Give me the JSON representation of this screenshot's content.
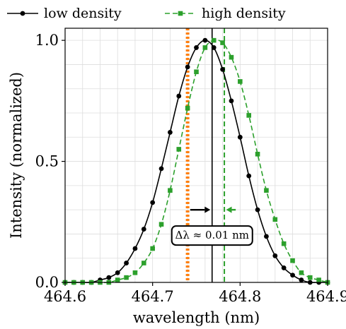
{
  "chart_data": {
    "type": "line",
    "title": "",
    "xlabel": "wavelength (nm)",
    "ylabel": "Intensity (normalized)",
    "xlim": [
      464.6,
      464.9
    ],
    "ylim": [
      0.0,
      1.05
    ],
    "xticks": [
      464.6,
      464.7,
      464.8,
      464.9
    ],
    "xtick_labels": [
      "464.6",
      "464.7",
      "464.8",
      "464.9"
    ],
    "yticks": [
      0.0,
      0.5,
      1.0
    ],
    "ytick_labels": [
      "0.0",
      "0.5",
      "1.0"
    ],
    "grid": true,
    "legend_position": "top",
    "series": [
      {
        "name": "low density",
        "color": "#000000",
        "marker": "circle",
        "linestyle": "solid",
        "x": [
          464.6,
          464.61,
          464.62,
          464.63,
          464.64,
          464.65,
          464.66,
          464.67,
          464.68,
          464.69,
          464.7,
          464.71,
          464.72,
          464.73,
          464.74,
          464.75,
          464.76,
          464.77,
          464.78,
          464.79,
          464.8,
          464.81,
          464.82,
          464.83,
          464.84,
          464.85,
          464.86,
          464.87,
          464.88,
          464.89,
          464.9
        ],
        "values": [
          0.0,
          0.0,
          0.0,
          0.0,
          0.01,
          0.02,
          0.04,
          0.08,
          0.14,
          0.22,
          0.33,
          0.47,
          0.62,
          0.77,
          0.89,
          0.97,
          1.0,
          0.97,
          0.88,
          0.75,
          0.6,
          0.44,
          0.3,
          0.19,
          0.11,
          0.06,
          0.03,
          0.01,
          0.0,
          0.0,
          0.0
        ]
      },
      {
        "name": "high density",
        "color": "#2ca02c",
        "marker": "square",
        "linestyle": "dashed",
        "x": [
          464.6,
          464.61,
          464.62,
          464.63,
          464.64,
          464.65,
          464.66,
          464.67,
          464.68,
          464.69,
          464.7,
          464.71,
          464.72,
          464.73,
          464.74,
          464.75,
          464.76,
          464.77,
          464.78,
          464.79,
          464.8,
          464.81,
          464.82,
          464.83,
          464.84,
          464.85,
          464.86,
          464.87,
          464.88,
          464.89,
          464.9
        ],
        "values": [
          0.0,
          0.0,
          0.0,
          0.0,
          0.0,
          0.0,
          0.01,
          0.02,
          0.04,
          0.08,
          0.14,
          0.24,
          0.38,
          0.55,
          0.72,
          0.87,
          0.97,
          1.0,
          0.99,
          0.93,
          0.83,
          0.69,
          0.53,
          0.38,
          0.26,
          0.16,
          0.09,
          0.04,
          0.02,
          0.01,
          0.0
        ]
      }
    ],
    "vlines": [
      {
        "x": 464.74,
        "color": "#ff7f0e",
        "style": "dotted"
      },
      {
        "x": 464.768,
        "color": "#000000",
        "style": "solid"
      },
      {
        "x": 464.782,
        "color": "#2ca02c",
        "style": "dashed"
      }
    ],
    "arrows": [
      {
        "from_x": 464.743,
        "to_x": 464.766,
        "y": 0.3,
        "color": "#000000"
      },
      {
        "from_x": 464.795,
        "to_x": 464.784,
        "y": 0.3,
        "color": "#2ca02c"
      }
    ],
    "annotation": {
      "text": "Δλ ≈ 0.01 nm",
      "x": 464.768,
      "y": 0.195
    }
  }
}
